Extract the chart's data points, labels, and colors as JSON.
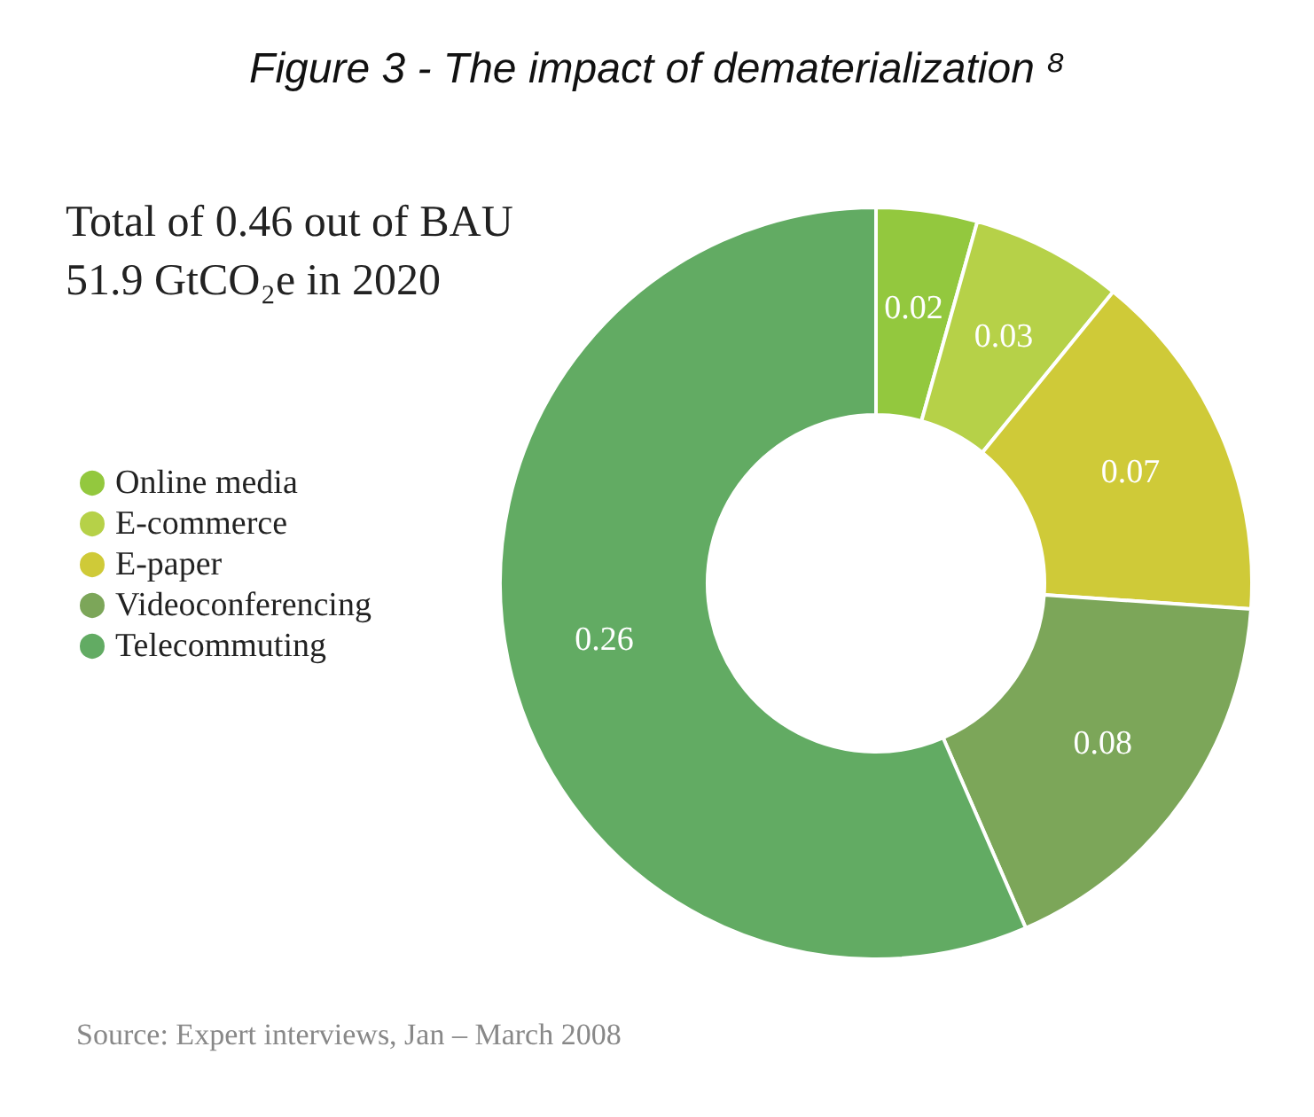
{
  "chart_data": {
    "type": "donut",
    "title": "Figure 3 - The impact of dematerialization ⁸",
    "subtitle": "Total of 0.46 out of BAU 51.9 GtCO₂e in 2020",
    "categories": [
      "Online media",
      "E-commerce",
      "E-paper",
      "Videoconferencing",
      "Telecommuting"
    ],
    "values": [
      0.02,
      0.03,
      0.07,
      0.08,
      0.26
    ],
    "colors": [
      "#93c83e",
      "#b6d148",
      "#cfca38",
      "#7ca659",
      "#62ab63"
    ],
    "data_labels": true,
    "legend": "left",
    "annotations": [
      "Source: Expert interviews, Jan – March 2008"
    ]
  }
}
